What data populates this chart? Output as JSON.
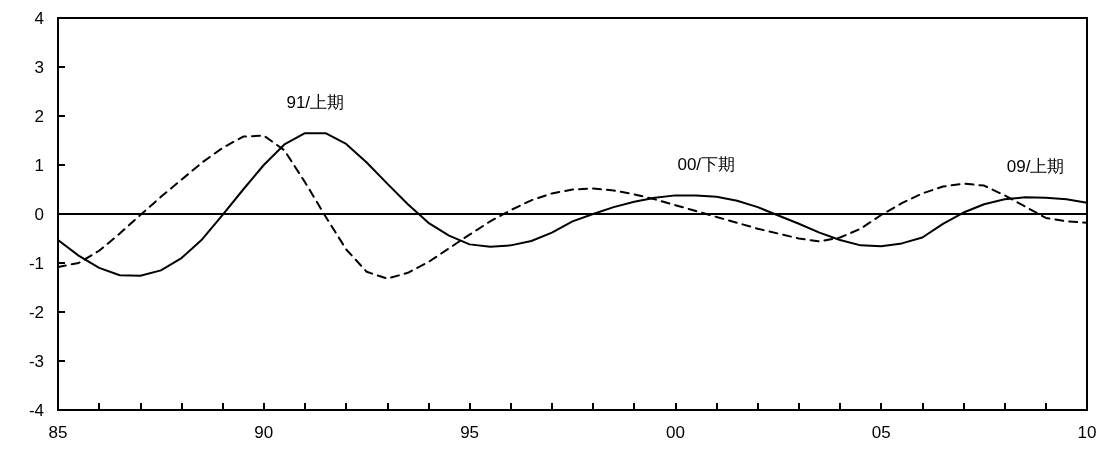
{
  "chart_data": {
    "type": "line",
    "x": [
      1985,
      1985.5,
      1986,
      1986.5,
      1987,
      1987.5,
      1988,
      1988.5,
      1989,
      1989.5,
      1990,
      1990.5,
      1991,
      1991.5,
      1992,
      1992.5,
      1993,
      1993.5,
      1994,
      1994.5,
      1995,
      1995.5,
      1996,
      1996.5,
      1997,
      1997.5,
      1998,
      1998.5,
      1999,
      1999.5,
      2000,
      2000.5,
      2001,
      2001.5,
      2002,
      2002.5,
      2003,
      2003.5,
      2004,
      2004.5,
      2005,
      2005.5,
      2006,
      2006.5,
      2007,
      2007.5,
      2008,
      2008.5,
      2009,
      2009.5,
      2010
    ],
    "series": [
      {
        "color": "#000000",
        "line_style": "solid",
        "values": [
          -0.53,
          -0.85,
          -1.1,
          -1.25,
          -1.26,
          -1.15,
          -0.9,
          -0.52,
          -0.02,
          0.5,
          1.0,
          1.42,
          1.65,
          1.65,
          1.43,
          1.05,
          0.62,
          0.2,
          -0.18,
          -0.44,
          -0.62,
          -0.67,
          -0.64,
          -0.55,
          -0.38,
          -0.15,
          0.0,
          0.14,
          0.25,
          0.33,
          0.38,
          0.38,
          0.35,
          0.27,
          0.14,
          -0.03,
          -0.2,
          -0.38,
          -0.53,
          -0.64,
          -0.66,
          -0.6,
          -0.48,
          -0.2,
          0.03,
          0.2,
          0.3,
          0.34,
          0.33,
          0.3,
          0.23
        ]
      },
      {
        "color": "#000000",
        "line_style": "dashed",
        "values": [
          -1.08,
          -1.0,
          -0.75,
          -0.4,
          -0.02,
          0.35,
          0.7,
          1.05,
          1.35,
          1.58,
          1.6,
          1.3,
          0.65,
          -0.05,
          -0.72,
          -1.18,
          -1.32,
          -1.2,
          -0.98,
          -0.7,
          -0.42,
          -0.15,
          0.08,
          0.28,
          0.42,
          0.5,
          0.52,
          0.48,
          0.4,
          0.3,
          0.18,
          0.06,
          -0.06,
          -0.18,
          -0.3,
          -0.4,
          -0.5,
          -0.56,
          -0.48,
          -0.3,
          -0.02,
          0.22,
          0.42,
          0.56,
          0.62,
          0.58,
          0.38,
          0.15,
          -0.08,
          -0.15,
          -0.18
        ]
      }
    ],
    "xlim": [
      1985,
      2010
    ],
    "xticks": [
      {
        "value": 1985,
        "label": "85"
      },
      {
        "value": 1986,
        "label": null
      },
      {
        "value": 1987,
        "label": null
      },
      {
        "value": 1988,
        "label": null
      },
      {
        "value": 1989,
        "label": null
      },
      {
        "value": 1990,
        "label": "90"
      },
      {
        "value": 1991,
        "label": null
      },
      {
        "value": 1992,
        "label": null
      },
      {
        "value": 1993,
        "label": null
      },
      {
        "value": 1994,
        "label": null
      },
      {
        "value": 1995,
        "label": "95"
      },
      {
        "value": 1996,
        "label": null
      },
      {
        "value": 1997,
        "label": null
      },
      {
        "value": 1998,
        "label": null
      },
      {
        "value": 1999,
        "label": null
      },
      {
        "value": 2000,
        "label": "00"
      },
      {
        "value": 2001,
        "label": null
      },
      {
        "value": 2002,
        "label": null
      },
      {
        "value": 2003,
        "label": null
      },
      {
        "value": 2004,
        "label": null
      },
      {
        "value": 2005,
        "label": "05"
      },
      {
        "value": 2006,
        "label": null
      },
      {
        "value": 2007,
        "label": null
      },
      {
        "value": 2008,
        "label": null
      },
      {
        "value": 2009,
        "label": null
      },
      {
        "value": 2010,
        "label": "10"
      }
    ],
    "ylim": [
      -4,
      4
    ],
    "yticks": [
      -4,
      -3,
      -2,
      -1,
      0,
      1,
      2,
      3,
      4
    ],
    "ref_lines": [
      {
        "axis": "y",
        "value": 0,
        "color": "#000000"
      }
    ],
    "annotations": [
      {
        "text": "91/上期",
        "x": 1991.25,
        "y": 1.65
      },
      {
        "text": "00/下期",
        "x": 2000.75,
        "y": 0.38
      },
      {
        "text": "09/上期",
        "x": 2008.75,
        "y": 0.34
      }
    ],
    "marker": "none"
  }
}
